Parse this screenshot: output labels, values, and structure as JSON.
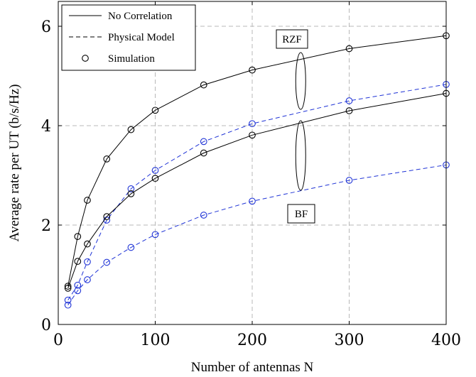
{
  "chart_data": {
    "type": "line",
    "title": "",
    "xlabel": "Number of antennas N",
    "ylabel": "Average rate per UT (b/s/Hz)",
    "xlim": [
      0,
      400
    ],
    "ylim": [
      0,
      6.5
    ],
    "xticks": [
      0,
      100,
      200,
      300,
      400
    ],
    "yticks": [
      0,
      2,
      4,
      6
    ],
    "xtick_labels": [
      "0",
      "100",
      "200",
      "300",
      "400"
    ],
    "ytick_labels": [
      "0",
      "2",
      "4",
      "6"
    ],
    "grid": true,
    "legend_position": "top-left",
    "legend": [
      {
        "label": "No Correlation",
        "style": "solid",
        "color": "#000000"
      },
      {
        "label": "Physical Model",
        "style": "dashed",
        "color": "#000000"
      },
      {
        "label": "Simulation",
        "style": "marker",
        "color": "#000000"
      }
    ],
    "annotations": [
      "RZF",
      "BF"
    ],
    "series": [
      {
        "group": "RZF",
        "model": "No Correlation",
        "style": "solid",
        "color": "#000000",
        "x": [
          10,
          20,
          30,
          50,
          75,
          100,
          150,
          200,
          300,
          400
        ],
        "y": [
          0.77,
          1.77,
          2.5,
          3.33,
          3.92,
          4.31,
          4.82,
          5.12,
          5.55,
          5.81
        ]
      },
      {
        "group": "RZF",
        "model": "Physical Model",
        "style": "dashed",
        "color": "#1f33d6",
        "x": [
          10,
          20,
          30,
          50,
          75,
          100,
          150,
          200,
          300,
          400
        ],
        "y": [
          0.49,
          0.79,
          1.26,
          2.1,
          2.73,
          3.1,
          3.68,
          4.04,
          4.5,
          4.83
        ]
      },
      {
        "group": "BF",
        "model": "No Correlation",
        "style": "solid",
        "color": "#000000",
        "x": [
          10,
          20,
          30,
          50,
          75,
          100,
          150,
          200,
          300,
          400
        ],
        "y": [
          0.73,
          1.27,
          1.62,
          2.17,
          2.63,
          2.94,
          3.45,
          3.81,
          4.3,
          4.65
        ]
      },
      {
        "group": "BF",
        "model": "Physical Model",
        "style": "dashed",
        "color": "#1f33d6",
        "x": [
          10,
          20,
          30,
          50,
          75,
          100,
          150,
          200,
          300,
          400
        ],
        "y": [
          0.39,
          0.68,
          0.9,
          1.25,
          1.55,
          1.81,
          2.2,
          2.48,
          2.9,
          3.21
        ]
      }
    ]
  }
}
